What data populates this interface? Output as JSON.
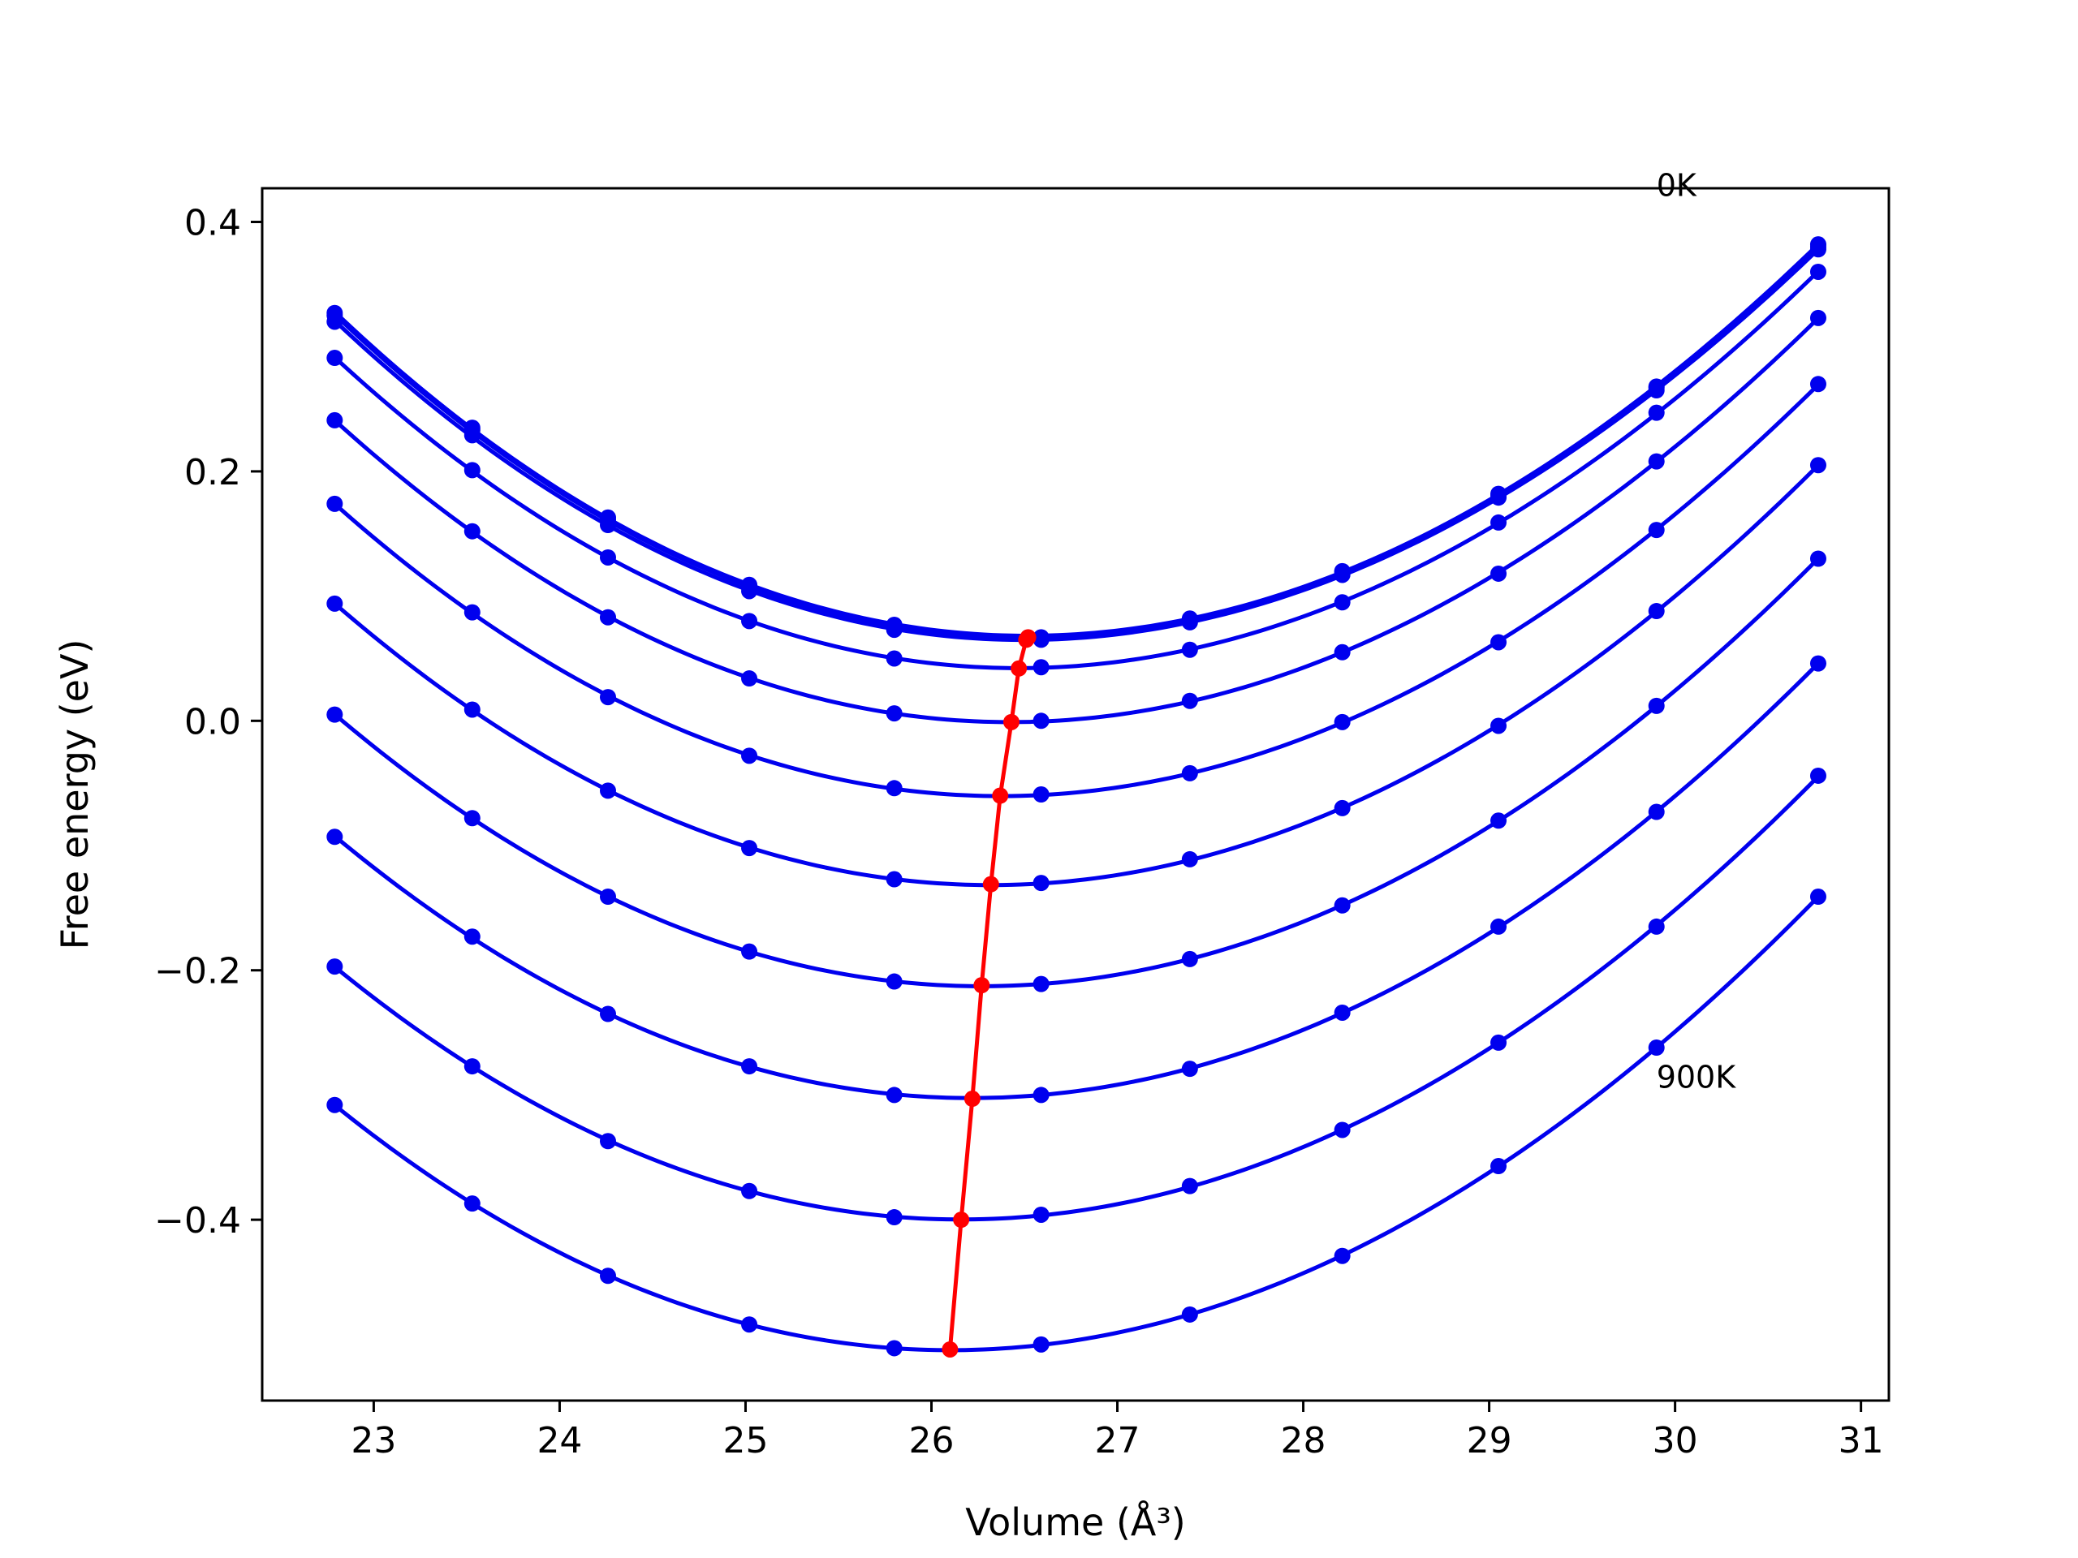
{
  "chart_data": {
    "type": "line",
    "xlabel": "Volume (Å³)",
    "ylabel": "Free energy (eV)",
    "xlim": [
      22.4,
      31.15
    ],
    "ylim": [
      -0.545,
      0.427
    ],
    "x_ticks": [
      23,
      24,
      25,
      26,
      27,
      28,
      29,
      30,
      31
    ],
    "y_ticks": [
      -0.4,
      -0.2,
      0.0,
      0.2,
      0.4
    ],
    "y_tick_labels": [
      "−0.4",
      "−0.2",
      "0.0",
      "0.2",
      "0.4"
    ],
    "grid": false,
    "annotations": [
      {
        "text": "0K",
        "x": 29.9,
        "y": 0.43
      },
      {
        "text": "900K",
        "x": 29.9,
        "y": -0.285
      }
    ],
    "x": [
      22.79,
      23.53,
      24.26,
      25.02,
      25.8,
      26.59,
      27.39,
      28.21,
      29.05,
      29.9,
      30.77
    ],
    "colors": {
      "curves": "#0000ee",
      "minima": "#ff0000"
    },
    "series": [
      {
        "values": [
          0.327,
          0.235,
          0.163,
          0.109,
          0.077,
          0.067,
          0.082,
          0.12,
          0.182,
          0.268,
          0.382
        ]
      },
      {
        "values": [
          0.325,
          0.233,
          0.161,
          0.108,
          0.076,
          0.066,
          0.081,
          0.119,
          0.181,
          0.267,
          0.38
        ]
      },
      {
        "values": [
          0.32,
          0.229,
          0.157,
          0.104,
          0.073,
          0.065,
          0.079,
          0.117,
          0.179,
          0.265,
          0.378
        ]
      },
      {
        "values": [
          0.291,
          0.201,
          0.131,
          0.08,
          0.05,
          0.043,
          0.057,
          0.095,
          0.159,
          0.247,
          0.36
        ]
      },
      {
        "values": [
          0.241,
          0.152,
          0.083,
          0.034,
          0.006,
          0.0,
          0.016,
          0.055,
          0.118,
          0.208,
          0.323
        ]
      },
      {
        "values": [
          0.174,
          0.087,
          0.019,
          -0.028,
          -0.054,
          -0.059,
          -0.042,
          -0.001,
          0.063,
          0.153,
          0.27
        ]
      },
      {
        "values": [
          0.094,
          0.009,
          -0.056,
          -0.102,
          -0.127,
          -0.13,
          -0.111,
          -0.07,
          -0.004,
          0.088,
          0.205
        ]
      },
      {
        "values": [
          0.005,
          -0.078,
          -0.141,
          -0.185,
          -0.209,
          -0.211,
          -0.191,
          -0.148,
          -0.08,
          0.012,
          0.13
        ]
      },
      {
        "values": [
          -0.093,
          -0.173,
          -0.235,
          -0.277,
          -0.3,
          -0.3,
          -0.279,
          -0.234,
          -0.165,
          -0.073,
          0.046
        ]
      },
      {
        "values": [
          -0.197,
          -0.277,
          -0.337,
          -0.377,
          -0.398,
          -0.396,
          -0.373,
          -0.328,
          -0.258,
          -0.165,
          -0.044
        ]
      },
      {
        "values": [
          -0.308,
          -0.387,
          -0.445,
          -0.484,
          -0.503,
          -0.5,
          -0.476,
          -0.429,
          -0.357,
          -0.262,
          -0.141
        ]
      }
    ],
    "minima": {
      "x": [
        26.52,
        26.51,
        26.47,
        26.43,
        26.37,
        26.32,
        26.27,
        26.22,
        26.16,
        26.1
      ],
      "y": [
        0.067,
        0.065,
        0.042,
        -0.001,
        -0.06,
        -0.131,
        -0.212,
        -0.303,
        -0.4,
        -0.504
      ]
    }
  }
}
